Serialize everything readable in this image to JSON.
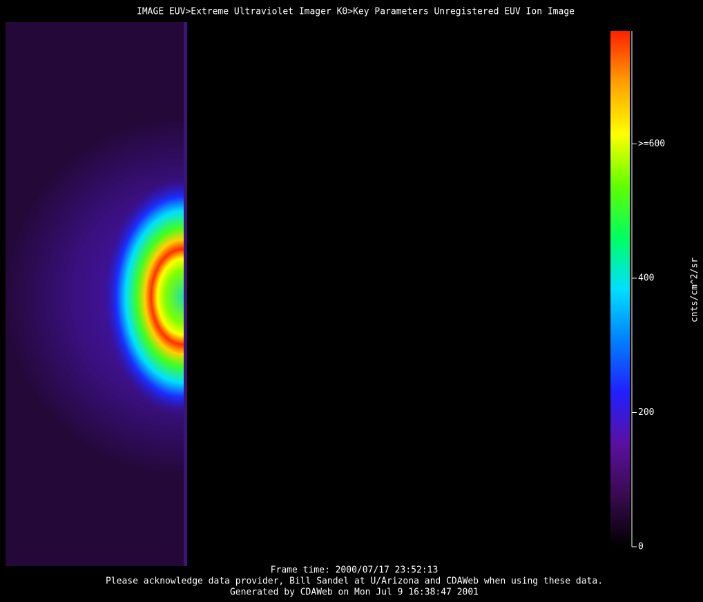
{
  "chart_data": {
    "type": "image",
    "title": "IMAGE  EUV>Extreme Ultraviolet Imager  K0>Key Parameters Unregistered EUV Ion Image",
    "colorbar_label": "cnts/cm^2/sr",
    "ylim": [
      0,
      768
    ],
    "yticks": [
      0,
      200,
      400,
      {
        "value": 600,
        "label": ">=600"
      }
    ],
    "colormap": [
      "#000000",
      "#3a0a50",
      "#5a10a0",
      "#2020ff",
      "#0080ff",
      "#00e0ff",
      "#00ff60",
      "#60ff00",
      "#ffff00",
      "#ffa000",
      "#ff2000"
    ],
    "footer": [
      "Frame time: 2000/07/17 23:52:13",
      "Please acknowledge data provider, Bill Sandel at U/Arizona and CDAWeb when using these data.",
      "Generated by CDAWeb on Mon Jul  9 16:38:47 2001"
    ]
  }
}
